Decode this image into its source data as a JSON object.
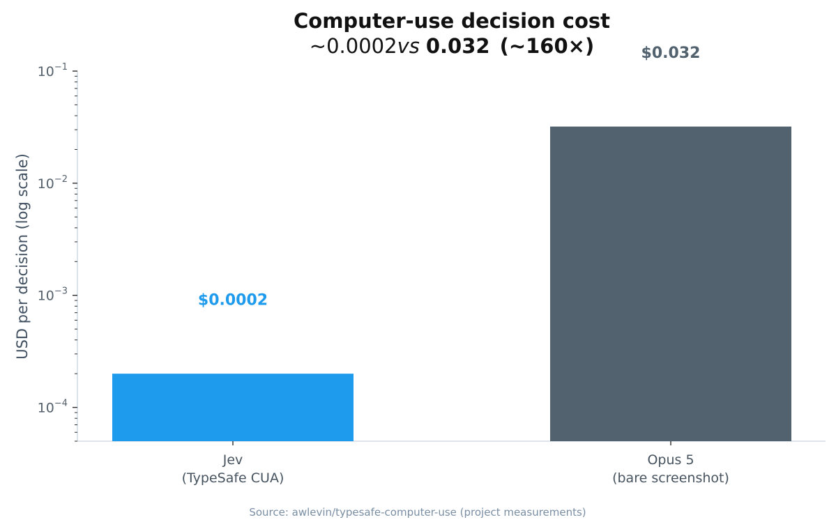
{
  "chart_data": {
    "type": "bar",
    "title": "Computer-use decision cost",
    "subtitle": {
      "prefix": "~0.0002",
      "vs": "vs",
      "strong": "0.032",
      "ratio": "(~160×)"
    },
    "ylabel": "USD per decision (log scale)",
    "xlabel": "",
    "yscale": "log",
    "ylim": [
      5e-05,
      0.1
    ],
    "yticks": [
      {
        "value": 0.1,
        "base": "10",
        "exp": "−1"
      },
      {
        "value": 0.01,
        "base": "10",
        "exp": "−2"
      },
      {
        "value": 0.001,
        "base": "10",
        "exp": "−3"
      },
      {
        "value": 0.0001,
        "base": "10",
        "exp": "−4"
      }
    ],
    "categories": [
      {
        "line1": "Jev",
        "line2": "(TypeSafe CUA)"
      },
      {
        "line1": "Opus 5",
        "line2": "(bare screenshot)"
      }
    ],
    "values": [
      0.0002,
      0.032
    ],
    "data_labels": [
      "$0.0002",
      "$0.032"
    ],
    "colors": [
      "#1e9bec",
      "#52626f"
    ],
    "grid": false,
    "legend": "none",
    "source": "Source: awlevin/typesafe-computer-use (project measurements)"
  }
}
